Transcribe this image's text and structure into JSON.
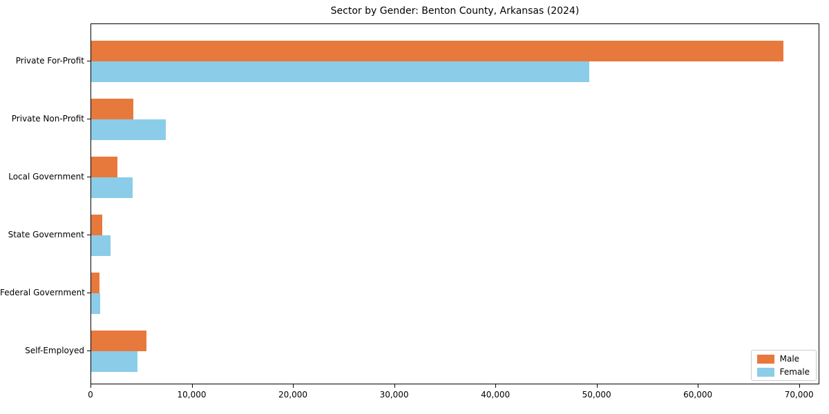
{
  "chart_data": {
    "type": "bar",
    "orientation": "horizontal",
    "title": "Sector by Gender: Benton County, Arkansas (2024)",
    "categories": [
      "Private For-Profit",
      "Private Non-Profit",
      "Local Government",
      "State Government",
      "Federal Government",
      "Self-Employed"
    ],
    "series": [
      {
        "name": "Male",
        "color": "#E8793D",
        "values": [
          68500,
          4200,
          2600,
          1100,
          800,
          5500
        ]
      },
      {
        "name": "Female",
        "color": "#8BCDE8",
        "values": [
          49300,
          7400,
          4100,
          1900,
          900,
          4600
        ]
      }
    ],
    "xlim": [
      0,
      72000
    ],
    "x_ticks": [
      0,
      10000,
      20000,
      30000,
      40000,
      50000,
      60000,
      70000
    ],
    "x_tick_labels": [
      "0",
      "10,000",
      "20,000",
      "30,000",
      "40,000",
      "50,000",
      "60,000",
      "70,000"
    ],
    "xlabel": "",
    "ylabel": "",
    "grid": false,
    "legend_position": "lower right",
    "background_color": "#ffffff",
    "spine_color": "#000000"
  }
}
